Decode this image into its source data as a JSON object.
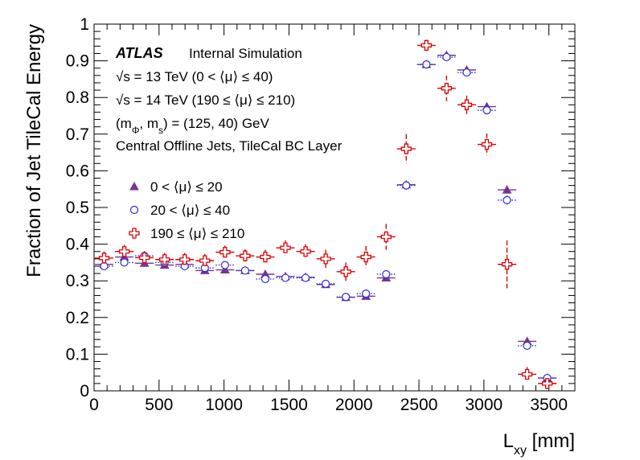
{
  "chart_data": {
    "type": "scatter",
    "title": "",
    "xlabel": "L",
    "xlabel_sub": "xy",
    "xlabel_unit": " [mm]",
    "ylabel": "Fraction of Jet TileCal Energy",
    "xlim": [
      0,
      3700
    ],
    "ylim": [
      0,
      1
    ],
    "x_ticks": [
      0,
      500,
      1000,
      1500,
      2000,
      2500,
      3000,
      3500
    ],
    "y_ticks": [
      0,
      0.1,
      0.2,
      0.3,
      0.4,
      0.5,
      0.6,
      0.7,
      0.8,
      0.9,
      1
    ],
    "y_tick_labels": [
      "0",
      "0.1",
      "0.2",
      "0.3",
      "0.4",
      "0.5",
      "0.6",
      "0.7",
      "0.8",
      "0.9",
      "1"
    ],
    "legend_position": "middle-left",
    "x_bin_edges": [
      0,
      155,
      310,
      465,
      620,
      775,
      930,
      1085,
      1240,
      1395,
      1550,
      1705,
      1860,
      2015,
      2170,
      2325,
      2480,
      2635,
      2790,
      2945,
      3100,
      3255,
      3410,
      3565,
      3700
    ],
    "series": [
      {
        "name": "0 < ⟨μ⟩ ≤ 20",
        "marker": "triangle",
        "color": "#7b3294",
        "line_style": "solid",
        "values": [
          0.345,
          0.365,
          0.348,
          0.343,
          0.345,
          0.328,
          0.33,
          0.328,
          0.318,
          0.312,
          0.31,
          0.29,
          0.255,
          0.258,
          0.308,
          0.562,
          0.89,
          0.915,
          0.875,
          0.775,
          0.548,
          0.135,
          0.035,
          0.0
        ],
        "errors": [
          0.008,
          0.008,
          0.008,
          0.008,
          0.008,
          0.008,
          0.008,
          0.008,
          0.008,
          0.008,
          0.008,
          0.008,
          0.006,
          0.006,
          0.008,
          0.01,
          0.008,
          0.008,
          0.008,
          0.01,
          0.01,
          0.008,
          0.006,
          0.0
        ]
      },
      {
        "name": "20 < ⟨μ⟩ ≤ 40",
        "marker": "open-circle",
        "color": "#2b2bd6",
        "line_style": "dotted",
        "values": [
          0.34,
          0.35,
          0.368,
          0.35,
          0.34,
          0.335,
          0.343,
          0.328,
          0.305,
          0.308,
          0.308,
          0.292,
          0.256,
          0.265,
          0.318,
          0.56,
          0.89,
          0.91,
          0.868,
          0.765,
          0.52,
          0.123,
          0.035,
          0.0
        ],
        "errors": [
          0.008,
          0.008,
          0.008,
          0.008,
          0.008,
          0.008,
          0.008,
          0.008,
          0.008,
          0.008,
          0.008,
          0.008,
          0.006,
          0.006,
          0.008,
          0.01,
          0.008,
          0.008,
          0.008,
          0.01,
          0.012,
          0.008,
          0.006,
          0.0
        ]
      },
      {
        "name": "190 ≤ ⟨μ⟩ ≤ 210",
        "marker": "open-cross",
        "color": "#dd0000",
        "line_style": "dashed",
        "values": [
          0.362,
          0.38,
          0.363,
          0.358,
          0.358,
          0.355,
          0.378,
          0.368,
          0.365,
          0.39,
          0.38,
          0.36,
          0.325,
          0.365,
          0.42,
          0.66,
          0.942,
          0.825,
          0.78,
          0.672,
          0.345,
          0.045,
          0.02,
          0.0
        ],
        "errors": [
          0.018,
          0.018,
          0.018,
          0.018,
          0.018,
          0.018,
          0.018,
          0.018,
          0.02,
          0.02,
          0.02,
          0.025,
          0.025,
          0.03,
          0.035,
          0.04,
          0.015,
          0.035,
          0.025,
          0.03,
          0.065,
          0.02,
          0.015,
          0.0
        ]
      }
    ]
  },
  "annotations": {
    "atlas": "ATLAS",
    "label": "Internal Simulation",
    "line1": "√s = 13 TeV (0 < ⟨μ⟩ ≤ 40)",
    "line2": "√s =  14 TeV (190 ≤ ⟨μ⟩ ≤ 210)",
    "line3_a": "(m",
    "line3_sub1": "Φ",
    "line3_b": ", m",
    "line3_sub2": "s",
    "line3_c": ") = (125, 40) GeV",
    "line4": "Central Offline Jets, TileCal BC Layer"
  }
}
